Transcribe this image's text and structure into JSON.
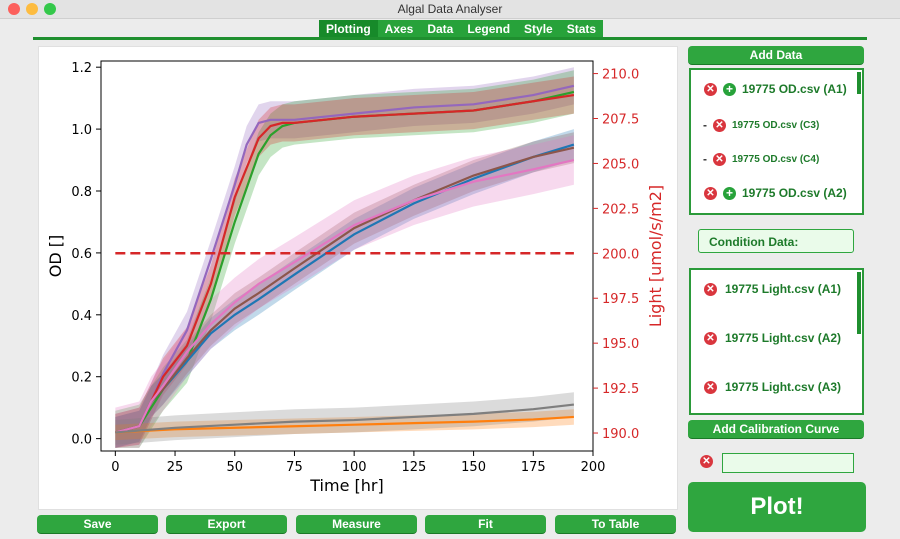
{
  "window": {
    "title": "Algal Data Analyser"
  },
  "tabs": [
    "Plotting",
    "Axes",
    "Data",
    "Legend",
    "Style",
    "Stats"
  ],
  "data_panel": {
    "add_data_label": "Add Data",
    "files": [
      {
        "name": "19775 OD.csv (A1)",
        "remove_icon": "close-icon",
        "add_icon": "plus-icon"
      },
      {
        "name": "19775 OD.csv (C3)",
        "remove_icon": "close-icon"
      },
      {
        "name": "19775 OD.csv (C4)",
        "remove_icon": "close-icon"
      },
      {
        "name": "19775 OD.csv (A2)",
        "remove_icon": "close-icon",
        "add_icon": "plus-icon"
      }
    ],
    "condition_label": "Condition Data:",
    "condition_files": [
      "19775 Light.csv (A1)",
      "19775 Light.csv (A2)",
      "19775 Light.csv (A3)"
    ],
    "add_calibration_label": "Add Calibration Curve",
    "calibration_value": "",
    "plot_label": "Plot!"
  },
  "bottom_buttons": [
    "Save",
    "Export",
    "Measure",
    "Fit",
    "To Table"
  ],
  "chart_data": {
    "type": "line",
    "xlabel": "Time [hr]",
    "ylabel": "OD []",
    "y2label": "Light [umol/s/m2]",
    "xlim": [
      -6,
      200
    ],
    "ylim": [
      -0.04,
      1.22
    ],
    "y2lim": [
      189.0,
      210.7
    ],
    "xticks": [
      "0",
      "25",
      "50",
      "75",
      "100",
      "125",
      "150",
      "175",
      "200"
    ],
    "yticks": [
      "0.0",
      "0.2",
      "0.4",
      "0.6",
      "0.8",
      "1.0",
      "1.2"
    ],
    "y2ticks": [
      "190.0",
      "192.5",
      "195.0",
      "197.5",
      "200.0",
      "202.5",
      "205.0",
      "207.5",
      "210.0"
    ],
    "light_level": 200.0,
    "colors": {
      "axis_right": "#d62728",
      "dash": "#d62728"
    },
    "series": [
      {
        "color": "#9467bd",
        "band": 0.06,
        "x": [
          0,
          10,
          15,
          20,
          30,
          40,
          50,
          55,
          60,
          65,
          75,
          100,
          125,
          150,
          175,
          192
        ],
        "y": [
          0.02,
          0.04,
          0.12,
          0.21,
          0.35,
          0.58,
          0.82,
          0.95,
          1.02,
          1.03,
          1.03,
          1.05,
          1.07,
          1.08,
          1.11,
          1.14
        ]
      },
      {
        "color": "#2ca02c",
        "band": 0.07,
        "x": [
          0,
          10,
          15,
          20,
          30,
          40,
          50,
          60,
          65,
          70,
          75,
          100,
          125,
          150,
          175,
          192
        ],
        "y": [
          0.02,
          0.04,
          0.1,
          0.16,
          0.25,
          0.45,
          0.7,
          0.92,
          0.98,
          1.01,
          1.02,
          1.04,
          1.05,
          1.06,
          1.09,
          1.12
        ]
      },
      {
        "color": "#d62728",
        "band": 0.06,
        "x": [
          0,
          10,
          15,
          20,
          30,
          40,
          50,
          60,
          65,
          70,
          75,
          100,
          125,
          150,
          175,
          192
        ],
        "y": [
          0.02,
          0.04,
          0.12,
          0.2,
          0.3,
          0.5,
          0.78,
          0.97,
          1.01,
          1.02,
          1.02,
          1.04,
          1.05,
          1.06,
          1.09,
          1.11
        ]
      },
      {
        "color": "#1f77b4",
        "band": 0.05,
        "x": [
          0,
          10,
          15,
          20,
          30,
          40,
          50,
          60,
          75,
          100,
          125,
          150,
          175,
          192
        ],
        "y": [
          0.02,
          0.04,
          0.12,
          0.16,
          0.25,
          0.34,
          0.4,
          0.45,
          0.53,
          0.66,
          0.76,
          0.84,
          0.91,
          0.95
        ]
      },
      {
        "color": "#8c564b",
        "band": 0.05,
        "x": [
          0,
          10,
          15,
          20,
          30,
          40,
          50,
          60,
          75,
          100,
          125,
          150,
          175,
          192
        ],
        "y": [
          0.02,
          0.04,
          0.12,
          0.16,
          0.26,
          0.35,
          0.42,
          0.47,
          0.55,
          0.68,
          0.77,
          0.85,
          0.91,
          0.94
        ]
      },
      {
        "color": "#e377c2",
        "band": 0.08,
        "x": [
          0,
          10,
          15,
          20,
          30,
          40,
          50,
          60,
          75,
          100,
          125,
          150,
          175,
          192
        ],
        "y": [
          0.02,
          0.04,
          0.12,
          0.17,
          0.28,
          0.37,
          0.44,
          0.5,
          0.57,
          0.69,
          0.77,
          0.83,
          0.87,
          0.9
        ]
      },
      {
        "color": "#ff7f0e",
        "band": 0.025,
        "x": [
          0,
          25,
          50,
          75,
          100,
          125,
          150,
          175,
          192
        ],
        "y": [
          0.02,
          0.03,
          0.035,
          0.04,
          0.045,
          0.05,
          0.055,
          0.062,
          0.07
        ]
      },
      {
        "color": "#7f7f7f",
        "band": 0.04,
        "x": [
          0,
          25,
          50,
          75,
          100,
          125,
          150,
          175,
          192
        ],
        "y": [
          0.02,
          0.035,
          0.045,
          0.055,
          0.06,
          0.07,
          0.08,
          0.095,
          0.11
        ]
      }
    ]
  }
}
